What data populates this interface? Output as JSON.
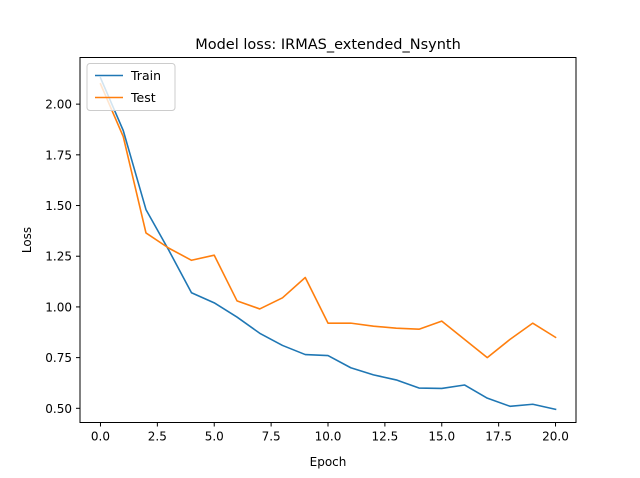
{
  "chart_data": {
    "type": "line",
    "title": "Model loss: IRMAS_extended_Nsynth",
    "xlabel": "Epoch",
    "ylabel": "Loss",
    "x": [
      0,
      1,
      2,
      3,
      4,
      5,
      6,
      7,
      8,
      9,
      10,
      11,
      12,
      13,
      14,
      15,
      16,
      17,
      18,
      19,
      20
    ],
    "xlim": [
      -0.9,
      20.9
    ],
    "ylim": [
      0.43,
      2.23
    ],
    "xticks": [
      0.0,
      2.5,
      5.0,
      7.5,
      10.0,
      12.5,
      15.0,
      17.5,
      20.0
    ],
    "xtick_labels": [
      "0.0",
      "2.5",
      "5.0",
      "7.5",
      "10.0",
      "12.5",
      "15.0",
      "17.5",
      "20.0"
    ],
    "yticks": [
      0.5,
      0.75,
      1.0,
      1.25,
      1.5,
      1.75,
      2.0
    ],
    "ytick_labels": [
      "0.50",
      "0.75",
      "1.00",
      "1.25",
      "1.50",
      "1.75",
      "2.00"
    ],
    "grid": false,
    "legend_position": "top-left",
    "series": [
      {
        "name": "Train",
        "color": "#1f77b4",
        "values": [
          2.13,
          1.87,
          1.48,
          1.28,
          1.07,
          1.02,
          0.95,
          0.87,
          0.81,
          0.765,
          0.76,
          0.7,
          0.665,
          0.64,
          0.6,
          0.598,
          0.615,
          0.55,
          0.51,
          0.52,
          0.495
        ]
      },
      {
        "name": "Test",
        "color": "#ff7f0e",
        "values": [
          2.1,
          1.84,
          1.365,
          1.29,
          1.23,
          1.255,
          1.03,
          0.99,
          1.045,
          1.145,
          0.92,
          0.92,
          0.905,
          0.895,
          0.89,
          0.93,
          0.84,
          0.75,
          0.84,
          0.92,
          0.85
        ]
      }
    ]
  }
}
